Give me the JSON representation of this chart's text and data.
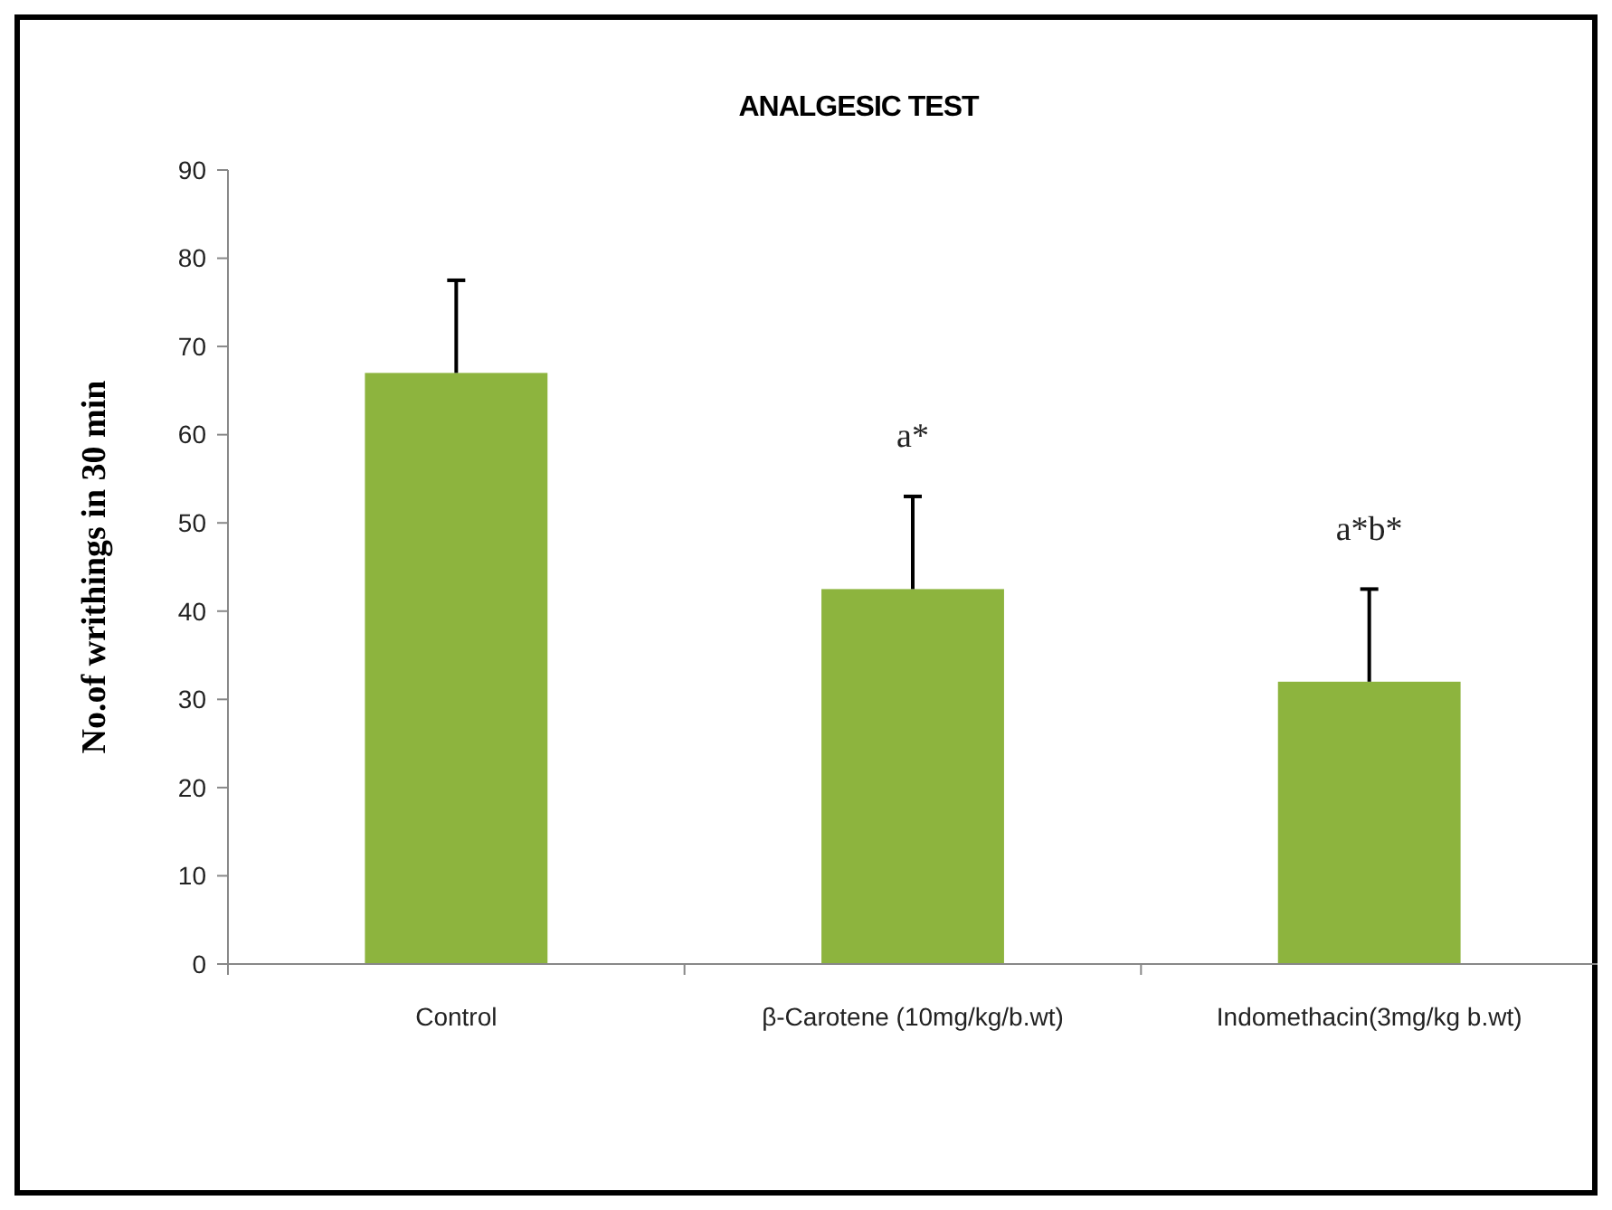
{
  "chart_data": {
    "type": "bar",
    "title": "ANALGESIC TEST",
    "ylabel": "No.of writhings in 30 min",
    "categories": [
      "Control",
      "β-Carotene (10mg/kg/b.wt)",
      "Indomethacin(3mg/kg b.wt)"
    ],
    "values": [
      67,
      42.5,
      32
    ],
    "errors": [
      [
        67,
        77.5
      ],
      [
        42.5,
        53
      ],
      [
        32,
        42.5
      ]
    ],
    "color": "#8db43e",
    "ylim": [
      0,
      90
    ],
    "yticks": [
      0,
      10,
      20,
      30,
      40,
      50,
      60,
      70,
      80,
      90
    ],
    "annotations": [
      "a*",
      "a*b*"
    ]
  }
}
